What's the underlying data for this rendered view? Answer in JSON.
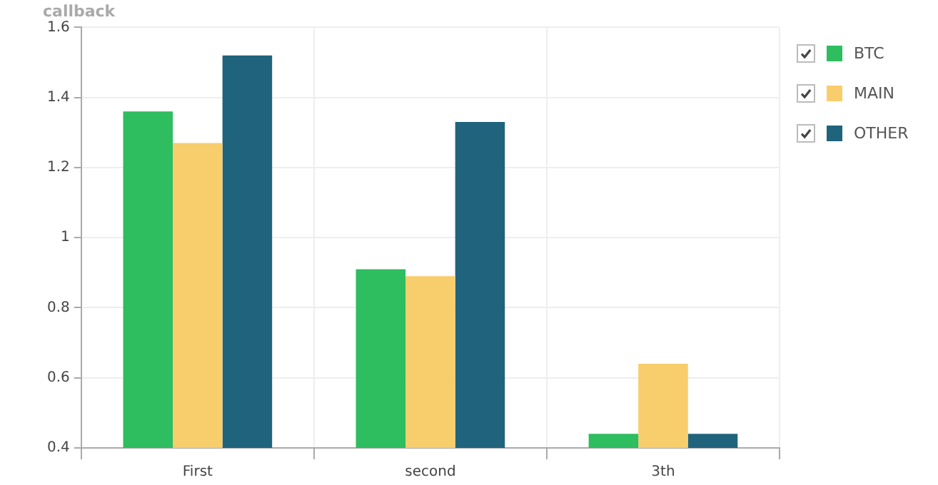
{
  "chart_data": {
    "type": "bar",
    "title": "callback",
    "categories": [
      "First",
      "second",
      "3th"
    ],
    "series": [
      {
        "name": "BTC",
        "color": "#2ebd5f",
        "values": [
          1.36,
          0.91,
          0.44
        ]
      },
      {
        "name": "MAIN",
        "color": "#f8cd6c",
        "values": [
          1.27,
          0.89,
          0.64
        ]
      },
      {
        "name": "OTHER",
        "color": "#20637d",
        "values": [
          1.52,
          1.33,
          0.44
        ]
      }
    ],
    "ylim": [
      0.4,
      1.6
    ],
    "yticks": [
      0.4,
      0.6,
      0.8,
      1,
      1.2,
      1.4,
      1.6
    ],
    "grid": true,
    "legend": "right"
  }
}
